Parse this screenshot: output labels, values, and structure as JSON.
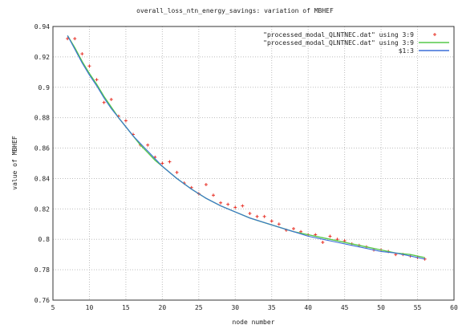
{
  "chart_data": {
    "type": "line",
    "title": "overall_loss_ntn_energy_savings: variation of MBHEF",
    "xlabel": "node number",
    "ylabel": "value of MBHEF",
    "xlim": [
      5,
      60
    ],
    "ylim": [
      0.76,
      0.94
    ],
    "grid": true,
    "legend_position": "top-right",
    "x_ticks": [
      "5",
      "10",
      "15",
      "20",
      "25",
      "30",
      "35",
      "40",
      "45",
      "50",
      "55",
      "60"
    ],
    "y_ticks": [
      "0.76",
      "0.78",
      "0.8",
      "0.82",
      "0.84",
      "0.86",
      "0.88",
      "0.9",
      "0.92",
      "0.94"
    ],
    "x_tick_values": [
      5,
      10,
      15,
      20,
      25,
      30,
      35,
      40,
      45,
      50,
      55,
      60
    ],
    "y_tick_values": [
      0.76,
      0.78,
      0.8,
      0.82,
      0.84,
      0.86,
      0.88,
      0.9,
      0.92,
      0.94
    ],
    "series": [
      {
        "name": "\"processed_modal_QLNTNEC.dat\" using 3:9",
        "style": "points",
        "color": "#e8342a",
        "x": [
          7,
          8,
          9,
          10,
          11,
          12,
          13,
          14,
          15,
          16,
          17,
          18,
          19,
          20,
          21,
          22,
          23,
          24,
          25,
          26,
          27,
          28,
          29,
          30,
          31,
          32,
          33,
          34,
          35,
          36,
          37,
          38,
          39,
          40,
          41,
          42,
          43,
          44,
          45,
          46,
          47,
          48,
          49,
          50,
          51,
          52,
          53,
          54,
          55,
          56
        ],
        "y": [
          0.932,
          0.932,
          0.922,
          0.914,
          0.905,
          0.89,
          0.892,
          0.881,
          0.878,
          0.869,
          0.862,
          0.862,
          0.854,
          0.85,
          0.851,
          0.844,
          0.837,
          0.834,
          0.83,
          0.836,
          0.829,
          0.824,
          0.823,
          0.821,
          0.822,
          0.817,
          0.815,
          0.815,
          0.812,
          0.81,
          0.806,
          0.807,
          0.805,
          0.803,
          0.803,
          0.798,
          0.802,
          0.8,
          0.799,
          0.797,
          0.796,
          0.795,
          0.793,
          0.793,
          0.792,
          0.79,
          0.79,
          0.789,
          0.788,
          0.787
        ]
      },
      {
        "name": "\"processed_modal_QLNTNEC.dat\" using 3:9",
        "style": "line",
        "color": "#55c84a",
        "x": [
          7,
          8,
          9,
          10,
          11,
          12,
          13,
          14,
          15,
          16,
          17,
          18,
          19,
          20,
          22,
          24,
          26,
          28,
          30,
          32,
          34,
          36,
          38,
          40,
          42,
          44,
          46,
          48,
          50,
          52,
          54,
          56
        ],
        "y": [
          0.934,
          0.926,
          0.917,
          0.909,
          0.902,
          0.894,
          0.887,
          0.88,
          0.874,
          0.868,
          0.862,
          0.857,
          0.852,
          0.848,
          0.84,
          0.833,
          0.827,
          0.822,
          0.818,
          0.814,
          0.811,
          0.808,
          0.805,
          0.803,
          0.801,
          0.799,
          0.797,
          0.795,
          0.793,
          0.791,
          0.79,
          0.788
        ]
      },
      {
        "name": "$1:3",
        "style": "line",
        "color": "#3b6fd8",
        "x": [
          7,
          8,
          9,
          10,
          11,
          12,
          13,
          14,
          15,
          16,
          17,
          18,
          19,
          20,
          22,
          24,
          26,
          28,
          30,
          32,
          34,
          36,
          38,
          40,
          42,
          44,
          46,
          48,
          50,
          52,
          54,
          56
        ],
        "y": [
          0.934,
          0.925,
          0.916,
          0.908,
          0.901,
          0.893,
          0.886,
          0.88,
          0.874,
          0.868,
          0.863,
          0.858,
          0.853,
          0.848,
          0.84,
          0.833,
          0.827,
          0.822,
          0.818,
          0.814,
          0.811,
          0.808,
          0.805,
          0.802,
          0.8,
          0.798,
          0.796,
          0.794,
          0.792,
          0.791,
          0.789,
          0.787
        ]
      }
    ]
  }
}
